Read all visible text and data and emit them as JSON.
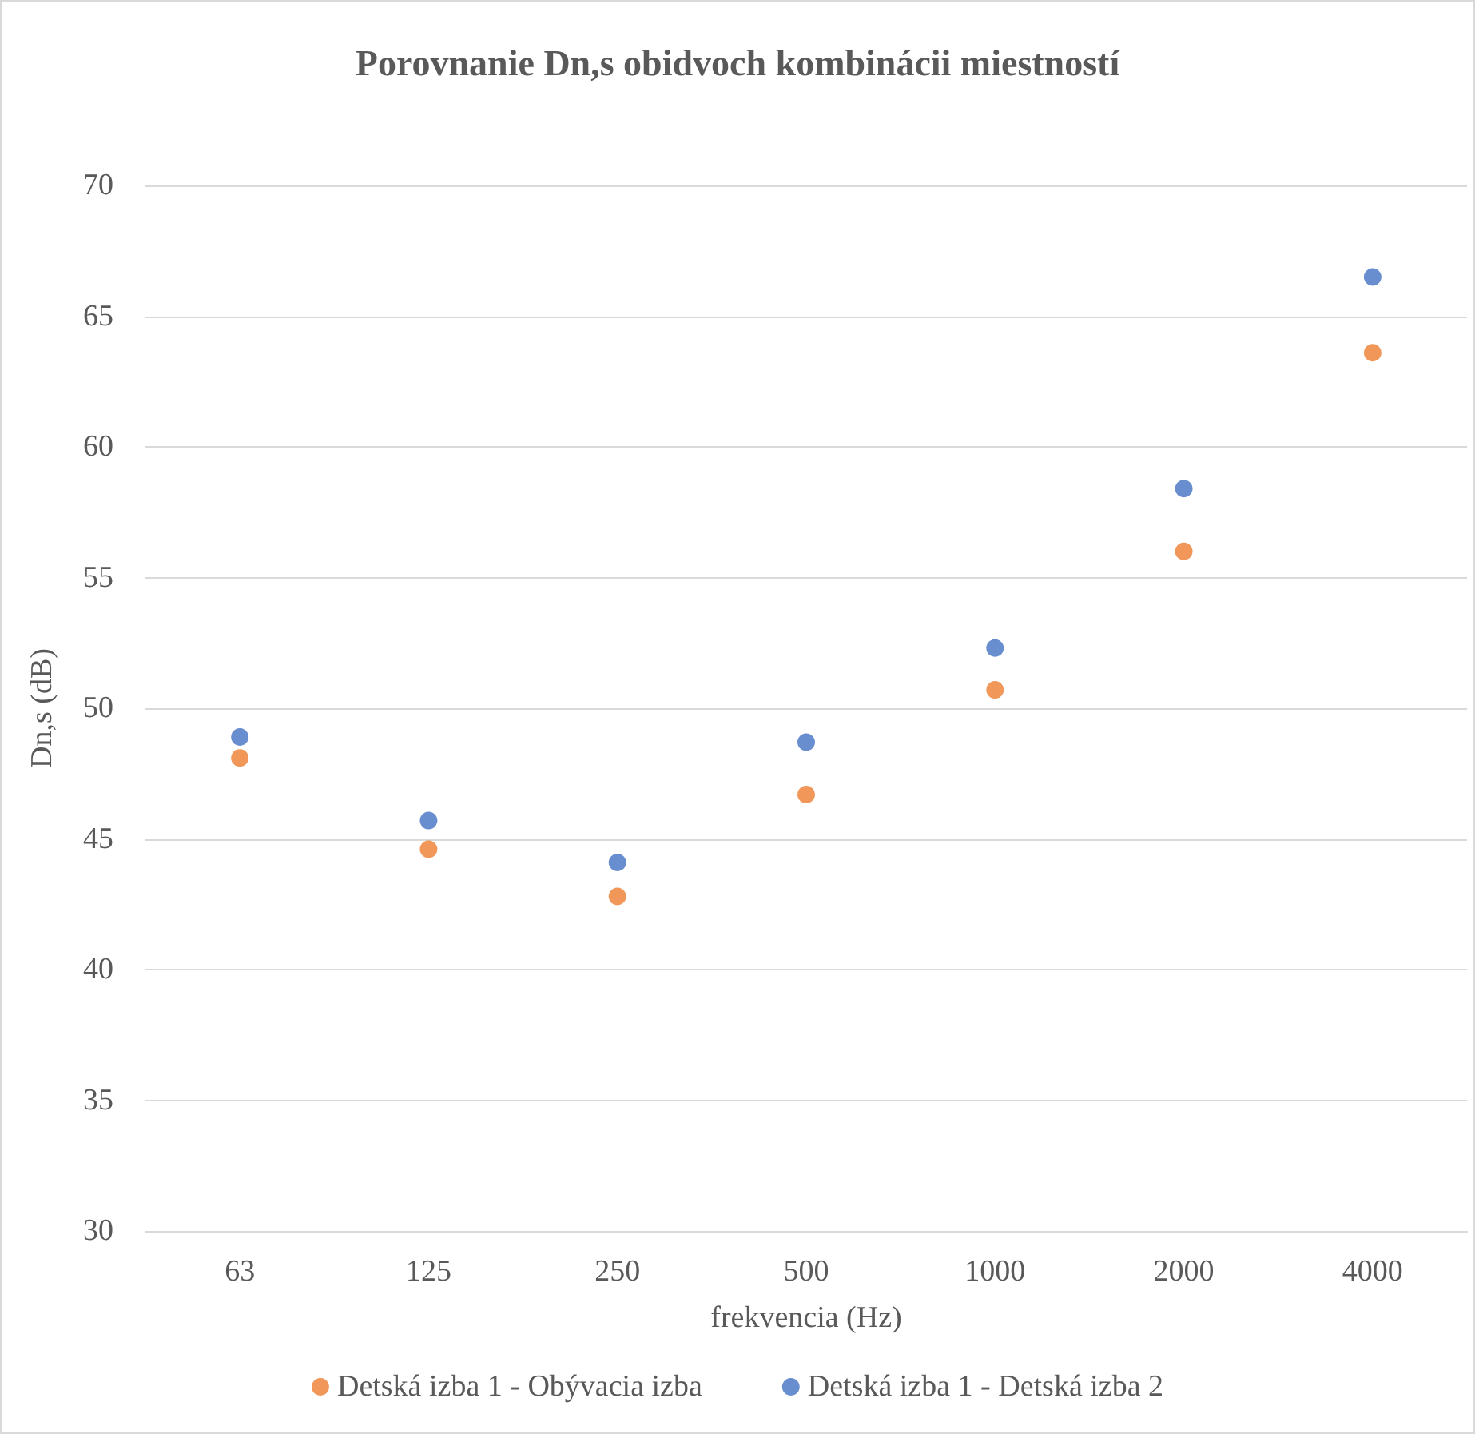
{
  "chart_data": {
    "type": "scatter",
    "title": "Porovnanie Dn,s obidvoch kombinácii miestností",
    "xlabel": "frekvencia (Hz)",
    "ylabel": "Dn,s (dB)",
    "categories": [
      "63",
      "125",
      "250",
      "500",
      "1000",
      "2000",
      "4000"
    ],
    "series": [
      {
        "name": "Detská izba 1 - Obývacia izba",
        "color": "#ed7d31",
        "values": [
          48.1,
          44.6,
          42.8,
          46.7,
          50.7,
          56.0,
          63.6
        ]
      },
      {
        "name": "Detská izba 1 - Detská izba 2",
        "color": "#4472c4",
        "values": [
          48.9,
          45.7,
          44.1,
          48.7,
          52.3,
          58.4,
          66.5
        ]
      }
    ],
    "ylim": [
      30,
      70
    ],
    "yticks": [
      30,
      35,
      40,
      45,
      50,
      55,
      60,
      65,
      70
    ],
    "grid": "y",
    "legend": "bottom",
    "marker": "circle"
  }
}
